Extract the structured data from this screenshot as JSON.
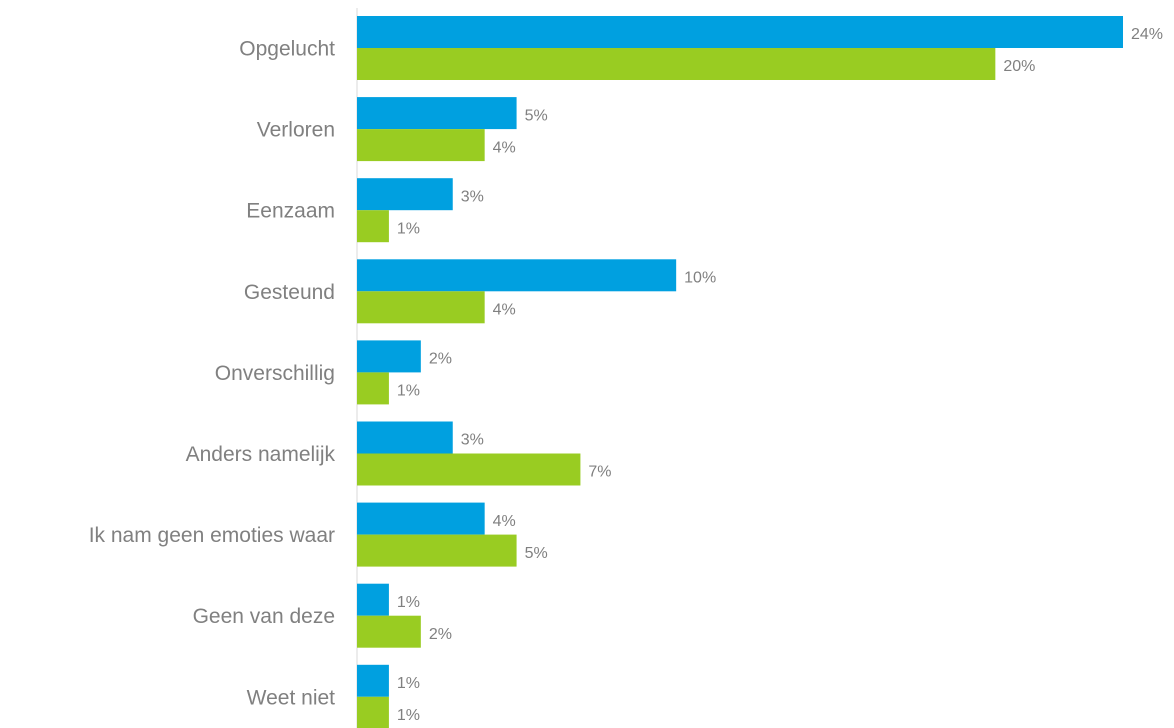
{
  "chart_data": {
    "type": "bar",
    "orientation": "horizontal",
    "categories": [
      "Opgelucht",
      "Verloren",
      "Eenzaam",
      "Gesteund",
      "Onverschillig",
      "Anders namelijk",
      "Ik nam geen emoties waar",
      "Geen van deze",
      "Weet niet"
    ],
    "series": [
      {
        "color": "#00a0e0",
        "values": [
          24,
          5,
          3,
          10,
          2,
          3,
          4,
          1,
          1
        ],
        "value_labels": [
          "24%",
          "5%",
          "3%",
          "10%",
          "2%",
          "3%",
          "4%",
          "1%",
          "1%"
        ]
      },
      {
        "color": "#99cc22",
        "values": [
          20,
          4,
          1,
          4,
          1,
          7,
          5,
          2,
          1
        ],
        "value_labels": [
          "20%",
          "4%",
          "1%",
          "4%",
          "1%",
          "7%",
          "5%",
          "2%",
          "1%"
        ]
      }
    ]
  }
}
